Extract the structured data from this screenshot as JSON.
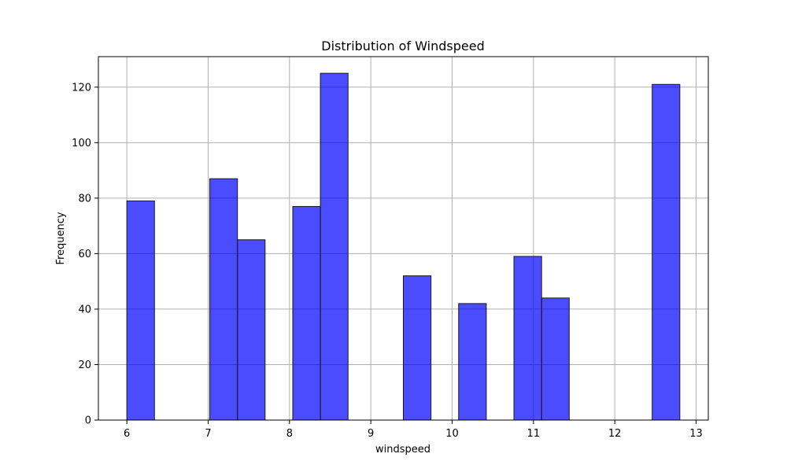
{
  "chart_data": {
    "type": "bar",
    "title": "Distribution of Windspeed",
    "xlabel": "windspeed",
    "ylabel": "Frequency",
    "xlim": [
      5.65,
      13.15
    ],
    "ylim": [
      0,
      131
    ],
    "xticks": [
      6,
      7,
      8,
      9,
      10,
      11,
      12,
      13
    ],
    "yticks": [
      0,
      20,
      40,
      60,
      80,
      100,
      120
    ],
    "grid": true,
    "bar_color": "#0000ff",
    "bar_opacity": 0.7,
    "edge_color": "#000000",
    "bins": [
      {
        "x0": 6.0,
        "x1": 6.34,
        "count": 79
      },
      {
        "x0": 6.34,
        "x1": 6.68,
        "count": 0
      },
      {
        "x0": 6.68,
        "x1": 7.02,
        "count": 0
      },
      {
        "x0": 7.02,
        "x1": 7.36,
        "count": 87
      },
      {
        "x0": 7.36,
        "x1": 7.7,
        "count": 65
      },
      {
        "x0": 7.7,
        "x1": 8.04,
        "count": 0
      },
      {
        "x0": 8.04,
        "x1": 8.38,
        "count": 77
      },
      {
        "x0": 8.38,
        "x1": 8.72,
        "count": 125
      },
      {
        "x0": 8.72,
        "x1": 9.06,
        "count": 0
      },
      {
        "x0": 9.06,
        "x1": 9.4,
        "count": 0
      },
      {
        "x0": 9.4,
        "x1": 9.74,
        "count": 52
      },
      {
        "x0": 9.74,
        "x1": 10.08,
        "count": 0
      },
      {
        "x0": 10.08,
        "x1": 10.42,
        "count": 42
      },
      {
        "x0": 10.42,
        "x1": 10.76,
        "count": 0
      },
      {
        "x0": 10.76,
        "x1": 11.1,
        "count": 59
      },
      {
        "x0": 11.1,
        "x1": 11.44,
        "count": 44
      },
      {
        "x0": 11.44,
        "x1": 11.78,
        "count": 0
      },
      {
        "x0": 11.78,
        "x1": 12.12,
        "count": 0
      },
      {
        "x0": 12.12,
        "x1": 12.46,
        "count": 0
      },
      {
        "x0": 12.46,
        "x1": 12.8,
        "count": 121
      }
    ]
  }
}
